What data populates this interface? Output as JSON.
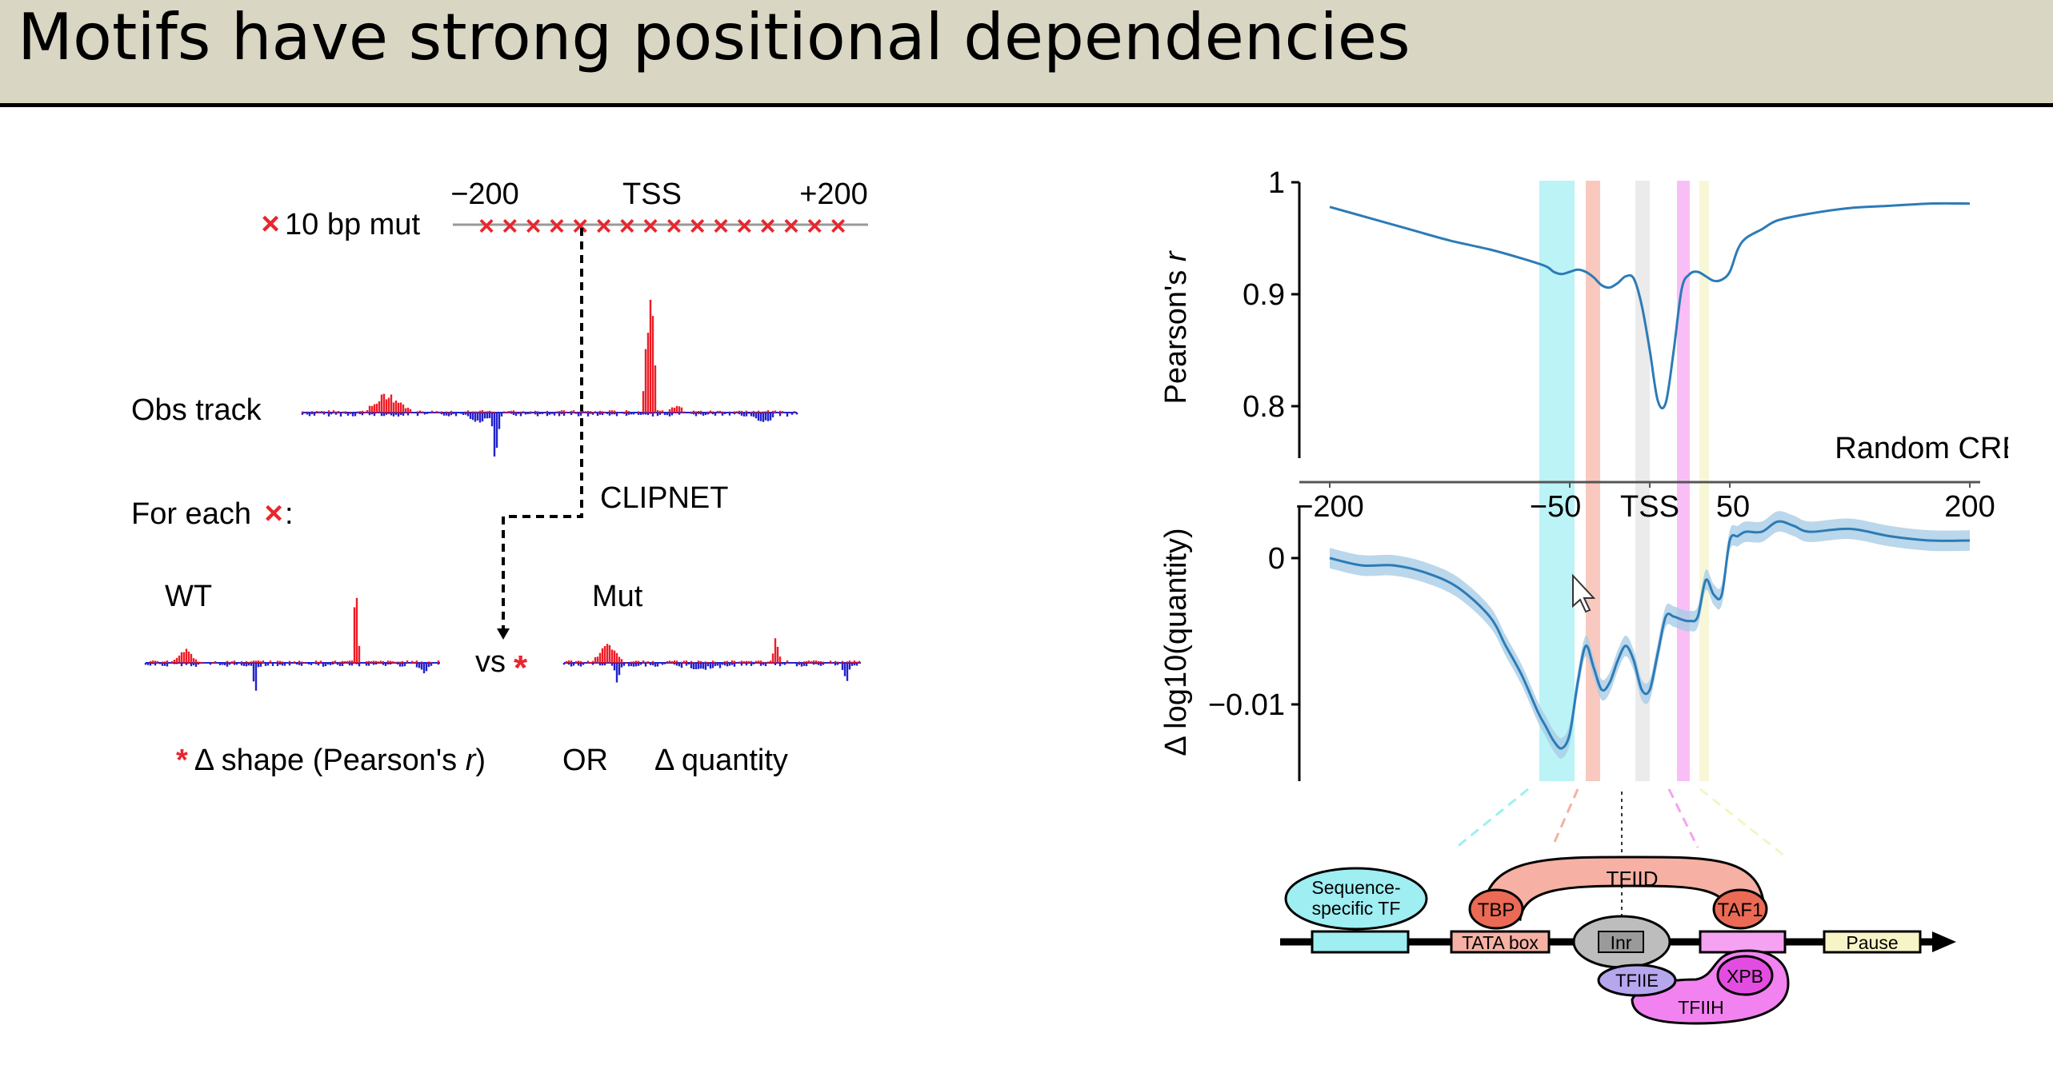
{
  "slide": {
    "title": "Motifs have strong positional dependencies"
  },
  "left_panel": {
    "pos_start": "−200",
    "pos_tss": "TSS",
    "pos_end": "+200",
    "mut_label": "10 bp mut",
    "mut_marker": "×",
    "obs_track_label": "Obs track",
    "for_each_label": "For each",
    "for_each_colon": ":",
    "model_label": "CLIPNET",
    "wt_label": "WT",
    "mut_track_label": "Mut",
    "vs_label": "vs",
    "star_marker": "*",
    "shape_metric_prefix": "Δ shape (Pearson's ",
    "shape_metric_r": "r",
    "shape_metric_suffix": ")",
    "or_label": "OR",
    "quantity_metric": "Δ quantity",
    "colors": {
      "mut": "#e8262e",
      "pos_signal": "#ee1c25",
      "neg_signal": "#2222cc"
    }
  },
  "right_panel": {
    "top_ylabel_main": "Pearson's ",
    "top_ylabel_r": "r",
    "top_yticks": [
      "1",
      "0.9",
      "0.8"
    ],
    "top_note": "Random CREs",
    "xticks": [
      "−200",
      "−50",
      "TSS",
      "50",
      "200"
    ],
    "bottom_ylabel": "Δ log10(quantity)",
    "bottom_yticks": [
      "0",
      "−0.01"
    ],
    "band_colors": [
      "#9eeef2",
      "#f6b0a4",
      "#e2e2e2",
      "#f6a2f2",
      "#f4f4c6"
    ],
    "line_color": "#2c7bb6",
    "ci_color": "#a9cde6"
  },
  "diagram": {
    "seq_tf": [
      "Sequence-",
      "specific TF"
    ],
    "tfiid": "TFIID",
    "tbp": "TBP",
    "taf1": "TAF1",
    "tata_box": "TATA box",
    "inr": "Inr",
    "tfiie": "TFIIE",
    "xpb": "XPB",
    "tfiih": "TFIIH",
    "pause": "Pause"
  },
  "chart_data": [
    {
      "type": "line",
      "ylabel": "Pearson's r",
      "x": [
        -200,
        -175,
        -150,
        -125,
        -100,
        -80,
        -65,
        -60,
        -55,
        -50,
        -45,
        -40,
        -35,
        -30,
        -25,
        -20,
        -15,
        -10,
        -5,
        0,
        5,
        10,
        15,
        20,
        25,
        30,
        35,
        40,
        45,
        50,
        55,
        60,
        70,
        80,
        100,
        125,
        150,
        175,
        200
      ],
      "y": [
        0.978,
        0.968,
        0.958,
        0.948,
        0.94,
        0.932,
        0.925,
        0.92,
        0.918,
        0.92,
        0.922,
        0.92,
        0.915,
        0.908,
        0.906,
        0.91,
        0.916,
        0.914,
        0.89,
        0.85,
        0.805,
        0.803,
        0.85,
        0.905,
        0.918,
        0.92,
        0.916,
        0.912,
        0.913,
        0.92,
        0.94,
        0.95,
        0.958,
        0.966,
        0.972,
        0.977,
        0.979,
        0.981,
        0.981
      ],
      "ylim": [
        0.75,
        1.0
      ],
      "xlim": [
        -200,
        200
      ],
      "annotation": "Random CREs"
    },
    {
      "type": "line",
      "ylabel": "Δ log10(quantity)",
      "x": [
        -200,
        -180,
        -160,
        -140,
        -120,
        -100,
        -90,
        -80,
        -70,
        -65,
        -60,
        -55,
        -50,
        -45,
        -40,
        -35,
        -30,
        -25,
        -20,
        -15,
        -10,
        -5,
        0,
        5,
        10,
        15,
        20,
        25,
        30,
        35,
        40,
        45,
        50,
        55,
        60,
        70,
        80,
        90,
        100,
        125,
        150,
        175,
        200
      ],
      "y": [
        0.0,
        -0.0005,
        -0.0005,
        -0.001,
        -0.002,
        -0.004,
        -0.006,
        -0.008,
        -0.0105,
        -0.0115,
        -0.0125,
        -0.013,
        -0.012,
        -0.0085,
        -0.006,
        -0.0075,
        -0.009,
        -0.0085,
        -0.007,
        -0.006,
        -0.007,
        -0.009,
        -0.009,
        -0.0065,
        -0.004,
        -0.004,
        -0.0042,
        -0.0043,
        -0.004,
        -0.0015,
        -0.0025,
        -0.0025,
        0.0012,
        0.0015,
        0.0018,
        0.0018,
        0.0025,
        0.0022,
        0.0018,
        0.002,
        0.0015,
        0.0012,
        0.0012
      ],
      "ylim": [
        -0.015,
        0.004
      ],
      "xlim": [
        -200,
        200
      ]
    }
  ]
}
